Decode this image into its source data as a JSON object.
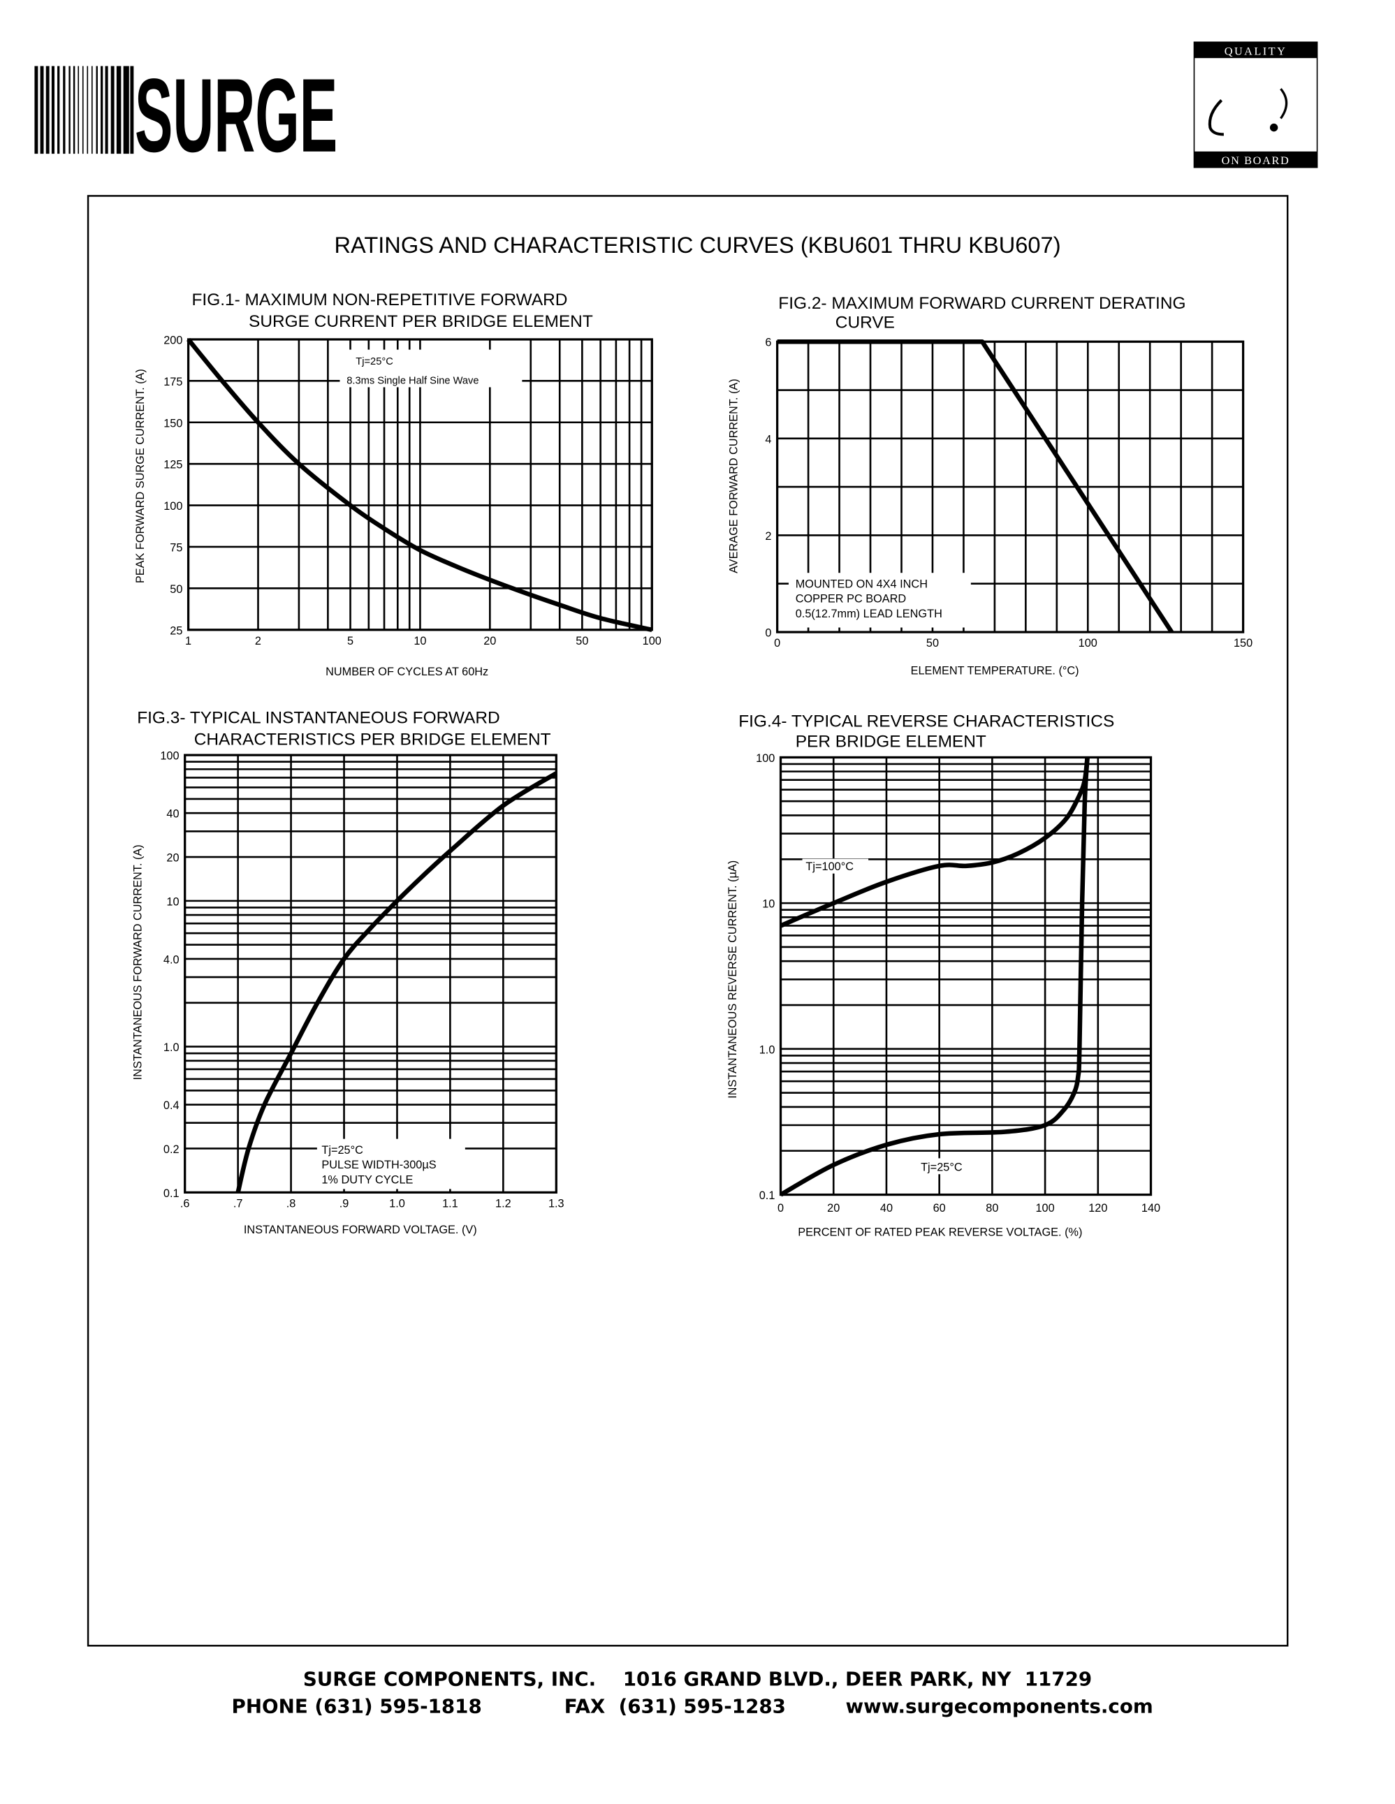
{
  "header": {
    "logo_text": "SURGE",
    "badge_top": "QUALITY",
    "badge_bottom": "ON BOARD"
  },
  "page_title": "RATINGS AND CHARACTERISTIC CURVES (KBU601 THRU KBU607)",
  "footer": {
    "line1": "SURGE COMPONENTS, INC.    1016 GRAND BLVD., DEER PARK, NY  11729",
    "phone": "PHONE (631) 595-1818",
    "fax": "FAX  (631) 595-1283",
    "website": "www.surgecomponents.com"
  },
  "chart_data": [
    {
      "type": "line",
      "title_line1": "FIG.1- MAXIMUM NON-REPETITIVE FORWARD",
      "title_line2": "SURGE CURRENT PER BRIDGE ELEMENT",
      "xlabel": "NUMBER OF CYCLES AT 60Hz",
      "ylabel": "PEAK FORWARD SURGE CURRENT. (A)",
      "xscale": "log",
      "xlim": [
        1,
        100
      ],
      "yscale": "linear",
      "ylim": [
        25,
        200
      ],
      "xticks": [
        1,
        2,
        5,
        10,
        20,
        50,
        100
      ],
      "xtick_labels": [
        "1",
        "2",
        "5",
        "10",
        "20",
        "50",
        "100"
      ],
      "yticks": [
        200,
        175,
        150,
        125,
        100,
        75,
        50,
        25
      ],
      "ytick_labels": [
        "200",
        "175",
        "150",
        "125",
        "100",
        "75",
        "50",
        "25"
      ],
      "grid": true,
      "annotation": [
        "Tj=25°C",
        "8.3ms Single Half Sine Wave"
      ],
      "series": [
        {
          "x": [
            1,
            1.4,
            2,
            3,
            5,
            7,
            10,
            15,
            25,
            40,
            60,
            100
          ],
          "y": [
            200,
            175,
            150,
            125,
            100,
            86,
            73,
            62,
            50,
            40,
            32,
            25
          ]
        }
      ]
    },
    {
      "type": "line",
      "title_line1": "FIG.2- MAXIMUM FORWARD CURRENT DERATING",
      "title_line2": "CURVE",
      "xlabel": "ELEMENT TEMPERATURE. (°C)",
      "ylabel": "AVERAGE FORWARD CURRENT. (A)",
      "xscale": "linear",
      "xlim": [
        0,
        150
      ],
      "yscale": "linear",
      "ylim": [
        0,
        6
      ],
      "xticks": [
        0,
        50,
        100,
        150
      ],
      "xtick_labels": [
        "0",
        "50",
        "100",
        "150"
      ],
      "yticks": [
        6,
        4,
        2,
        0
      ],
      "ytick_labels": [
        "6",
        "4",
        "2",
        "0"
      ],
      "grid": true,
      "annotation": [
        "MOUNTED ON 4X4 INCH",
        "COPPER PC BOARD",
        "0.5(12.7mm) LEAD LENGTH"
      ],
      "series": [
        {
          "x": [
            0,
            66,
            127
          ],
          "y": [
            6,
            6,
            0
          ]
        }
      ]
    },
    {
      "type": "line",
      "title_line1": "FIG.3- TYPICAL INSTANTANEOUS FORWARD",
      "title_line2": "CHARACTERISTICS PER BRIDGE ELEMENT",
      "xlabel": "INSTANTANEOUS FORWARD VOLTAGE. (V)",
      "ylabel": "INSTANTANEOUS FORWARD CURRENT. (A)",
      "xscale": "linear",
      "xlim": [
        0.6,
        1.3
      ],
      "yscale": "log",
      "ylim": [
        0.1,
        100
      ],
      "xticks": [
        0.6,
        0.7,
        0.8,
        0.9,
        1.0,
        1.1,
        1.2,
        1.3
      ],
      "xtick_labels": [
        ".6",
        ".7",
        ".8",
        ".9",
        "1.0",
        "1.1",
        "1.2",
        "1.3"
      ],
      "yticks": [
        100,
        40,
        20,
        10,
        4,
        1,
        0.4,
        0.2,
        0.1
      ],
      "ytick_labels": [
        "100",
        "40",
        "20",
        "10",
        "4.0",
        "1.0",
        "0.4",
        "0.2",
        "0.1"
      ],
      "grid": true,
      "annotation": [
        "Tj=25°C",
        "PULSE WIDTH-300µS",
        "1% DUTY CYCLE"
      ],
      "series": [
        {
          "x": [
            0.7,
            0.72,
            0.75,
            0.8,
            0.85,
            0.9,
            0.95,
            1.0,
            1.05,
            1.1,
            1.2,
            1.3
          ],
          "y": [
            0.1,
            0.2,
            0.4,
            0.9,
            2,
            4,
            6.5,
            10,
            15,
            22,
            45,
            75
          ]
        }
      ]
    },
    {
      "type": "line",
      "title_line1": "FIG.4- TYPICAL REVERSE CHARACTERISTICS",
      "title_line2": "PER BRIDGE ELEMENT",
      "xlabel": "PERCENT OF RATED PEAK REVERSE VOLTAGE. (%)",
      "ylabel": "INSTANTANEOUS REVERSE CURRENT. (µA)",
      "xscale": "linear",
      "xlim": [
        0,
        140
      ],
      "yscale": "log",
      "ylim": [
        0.1,
        100
      ],
      "xticks": [
        0,
        20,
        40,
        60,
        80,
        100,
        120,
        140
      ],
      "xtick_labels": [
        "0",
        "20",
        "40",
        "60",
        "80",
        "100",
        "120",
        "140"
      ],
      "yticks": [
        100,
        10,
        1,
        0.1
      ],
      "ytick_labels": [
        "100",
        "10",
        "1.0",
        "0.1"
      ],
      "grid": true,
      "series": [
        {
          "name": "Tj=100°C",
          "x": [
            0,
            20,
            40,
            60,
            70,
            80,
            90,
            100,
            108,
            113,
            115,
            116
          ],
          "y": [
            7,
            10,
            14,
            18,
            18,
            19,
            22,
            28,
            38,
            55,
            70,
            100
          ]
        },
        {
          "name": "Tj=25°C",
          "x": [
            0,
            20,
            40,
            60,
            85,
            100,
            107,
            111,
            112.5,
            113,
            114,
            115,
            116
          ],
          "y": [
            0.1,
            0.16,
            0.22,
            0.26,
            0.27,
            0.3,
            0.38,
            0.5,
            0.65,
            1,
            10,
            50,
            100
          ]
        }
      ]
    }
  ]
}
